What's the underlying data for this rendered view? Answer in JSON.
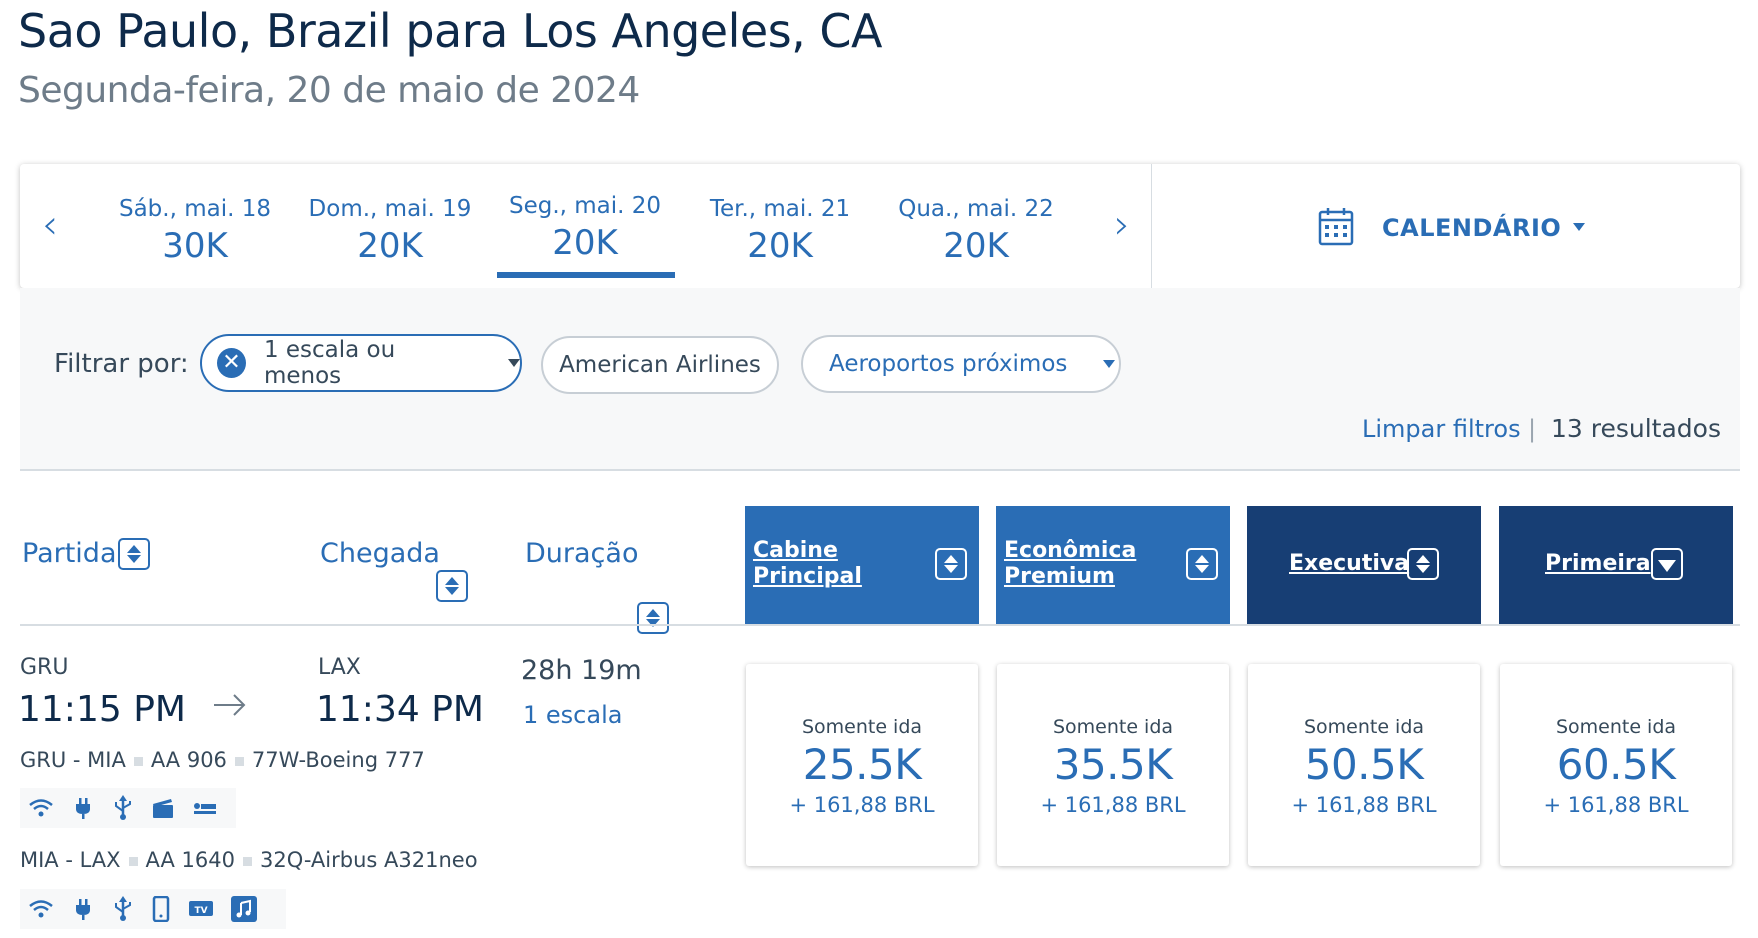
{
  "header": {
    "title": "Sao Paulo, Brazil para Los Angeles, CA",
    "subtitle": "Segunda-feira, 20 de maio de 2024"
  },
  "date_strip": {
    "days": [
      {
        "label": "Sáb., mai. 18",
        "points": "30K"
      },
      {
        "label": "Dom., mai. 19",
        "points": "20K"
      },
      {
        "label": "Seg., mai. 20",
        "points": "20K",
        "selected": true
      },
      {
        "label": "Ter., mai. 21",
        "points": "20K"
      },
      {
        "label": "Qua., mai. 22",
        "points": "20K"
      }
    ],
    "calendar_label": "CALENDÁRIO"
  },
  "filters": {
    "label": "Filtrar por:",
    "stops": "1 escala ou menos",
    "airline": "American Airlines",
    "airports": "Aeroportos próximos",
    "clear": "Limpar filtros",
    "separator": "|",
    "results": "13 resultados"
  },
  "columns": {
    "departure": "Partida",
    "arrival": "Chegada",
    "duration": "Duração",
    "cabins": [
      {
        "line1": "Cabine",
        "line2": "Principal"
      },
      {
        "line1": "Econômica",
        "line2": "Premium"
      },
      {
        "line1": "Executiva",
        "line2": ""
      },
      {
        "line1": "Primeira",
        "line2": ""
      }
    ]
  },
  "flight": {
    "origin": "GRU",
    "destination": "LAX",
    "depart_time": "11:15 PM",
    "arrive_time": "11:34 PM",
    "duration": "28h 19m",
    "stops": "1 escala",
    "segments": [
      {
        "route": "GRU - MIA",
        "flight": "AA 906",
        "aircraft": "77W-Boeing 777",
        "amenities": [
          "wifi-icon",
          "power-icon",
          "usb-icon",
          "video-icon",
          "lie-flat-seat-icon"
        ]
      },
      {
        "route": "MIA - LAX",
        "flight": "AA 1640",
        "aircraft": "32Q-Airbus A321neo",
        "amenities": [
          "wifi-icon",
          "power-icon",
          "usb-icon",
          "phone-icon",
          "tv-icon",
          "music-icon"
        ]
      }
    ],
    "fares": [
      {
        "label": "Somente ida",
        "points": "25.5K",
        "tax": "+ 161,88 BRL"
      },
      {
        "label": "Somente ida",
        "points": "35.5K",
        "tax": "+ 161,88 BRL"
      },
      {
        "label": "Somente ida",
        "points": "50.5K",
        "tax": "+ 161,88 BRL"
      },
      {
        "label": "Somente ida",
        "points": "60.5K",
        "tax": "+ 161,88 BRL"
      }
    ]
  },
  "colors": {
    "primary_blue": "#2a6db5",
    "dark_blue": "#173e74",
    "title_navy": "#0e2a4a",
    "text_gray": "#36495a"
  }
}
